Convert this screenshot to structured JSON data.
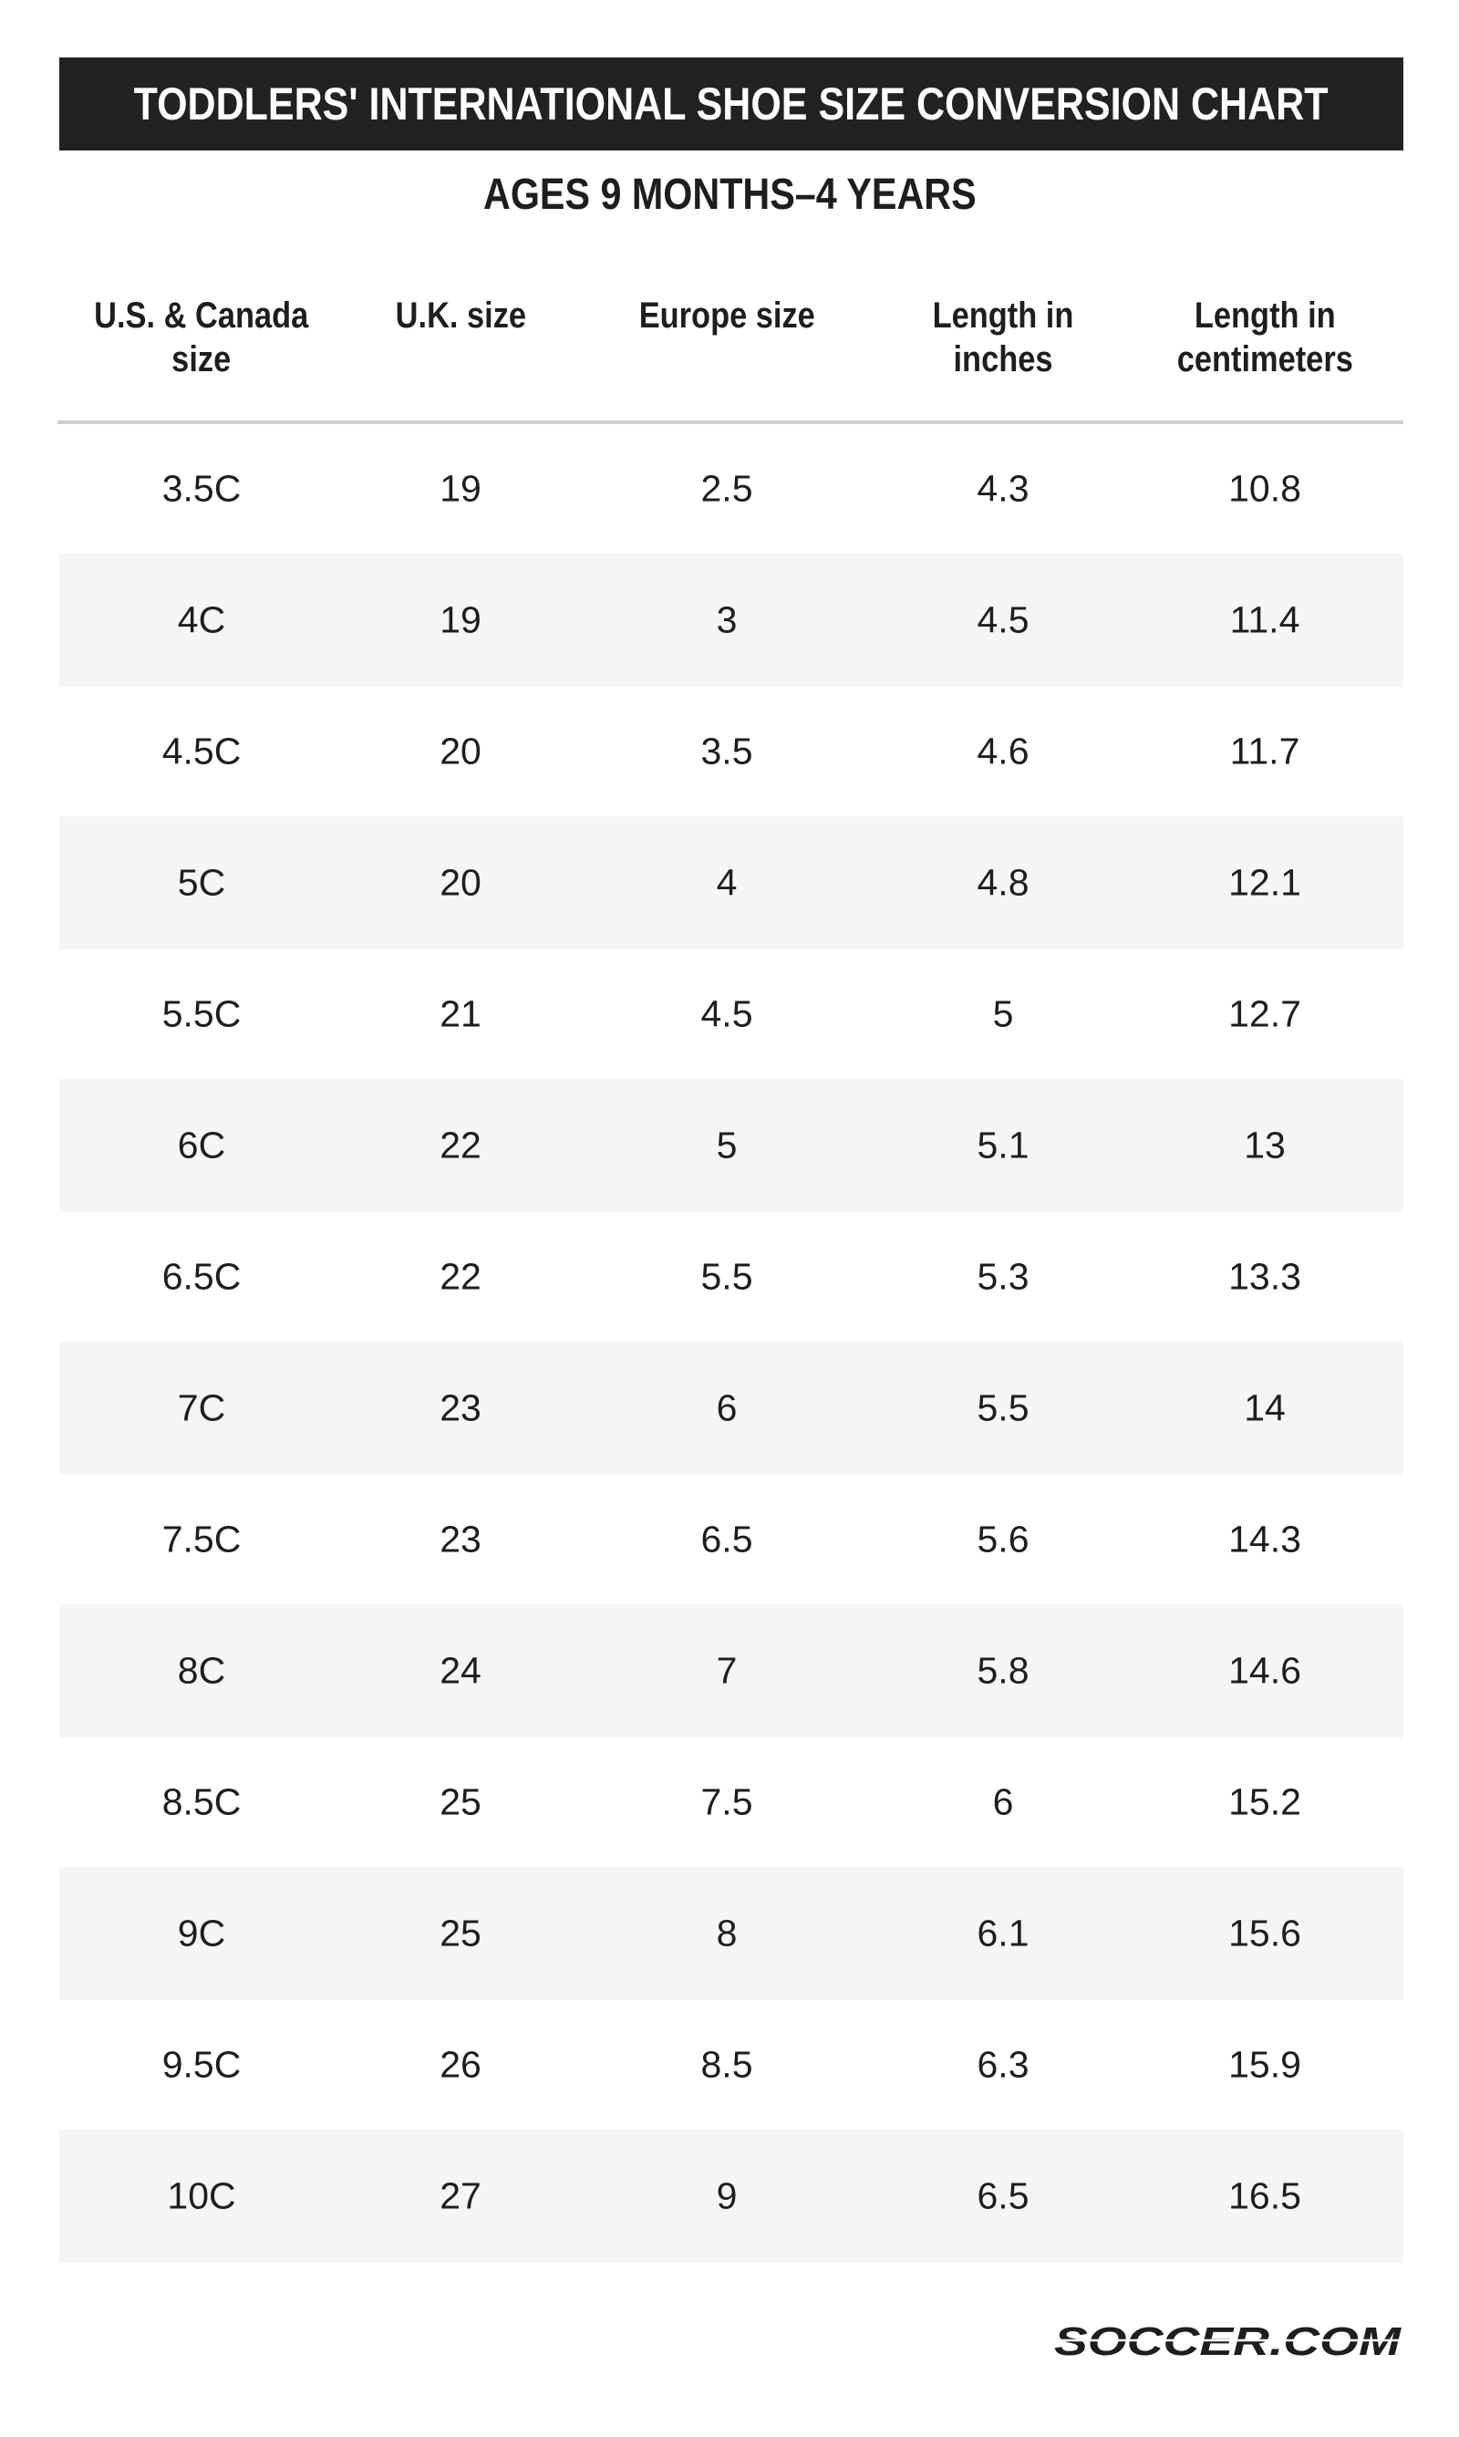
{
  "title": "TODDLERS' INTERNATIONAL SHOE SIZE CONVERSION CHART",
  "subtitle": "AGES 9 MONTHS–4 YEARS",
  "columns": [
    "U.S. & Canada size",
    "U.K. size",
    "Europe size",
    "Length in inches",
    "Length in centimeters"
  ],
  "rows": [
    [
      "3.5C",
      "19",
      "2.5",
      "4.3",
      "10.8"
    ],
    [
      "4C",
      "19",
      "3",
      "4.5",
      "11.4"
    ],
    [
      "4.5C",
      "20",
      "3.5",
      "4.6",
      "11.7"
    ],
    [
      "5C",
      "20",
      "4",
      "4.8",
      "12.1"
    ],
    [
      "5.5C",
      "21",
      "4.5",
      "5",
      "12.7"
    ],
    [
      "6C",
      "22",
      "5",
      "5.1",
      "13"
    ],
    [
      "6.5C",
      "22",
      "5.5",
      "5.3",
      "13.3"
    ],
    [
      "7C",
      "23",
      "6",
      "5.5",
      "14"
    ],
    [
      "7.5C",
      "23",
      "6.5",
      "5.6",
      "14.3"
    ],
    [
      "8C",
      "24",
      "7",
      "5.8",
      "14.6"
    ],
    [
      "8.5C",
      "25",
      "7.5",
      "6",
      "15.2"
    ],
    [
      "9C",
      "25",
      "8",
      "6.1",
      "15.6"
    ],
    [
      "9.5C",
      "26",
      "8.5",
      "6.3",
      "15.9"
    ],
    [
      "10C",
      "27",
      "9",
      "6.5",
      "16.5"
    ]
  ],
  "logo": "SOCCER.COM",
  "colors": {
    "title_bg": "#222222",
    "stripe": "#f5f5f5",
    "divider": "#cfcfcf",
    "text": "#1e1e1e"
  }
}
